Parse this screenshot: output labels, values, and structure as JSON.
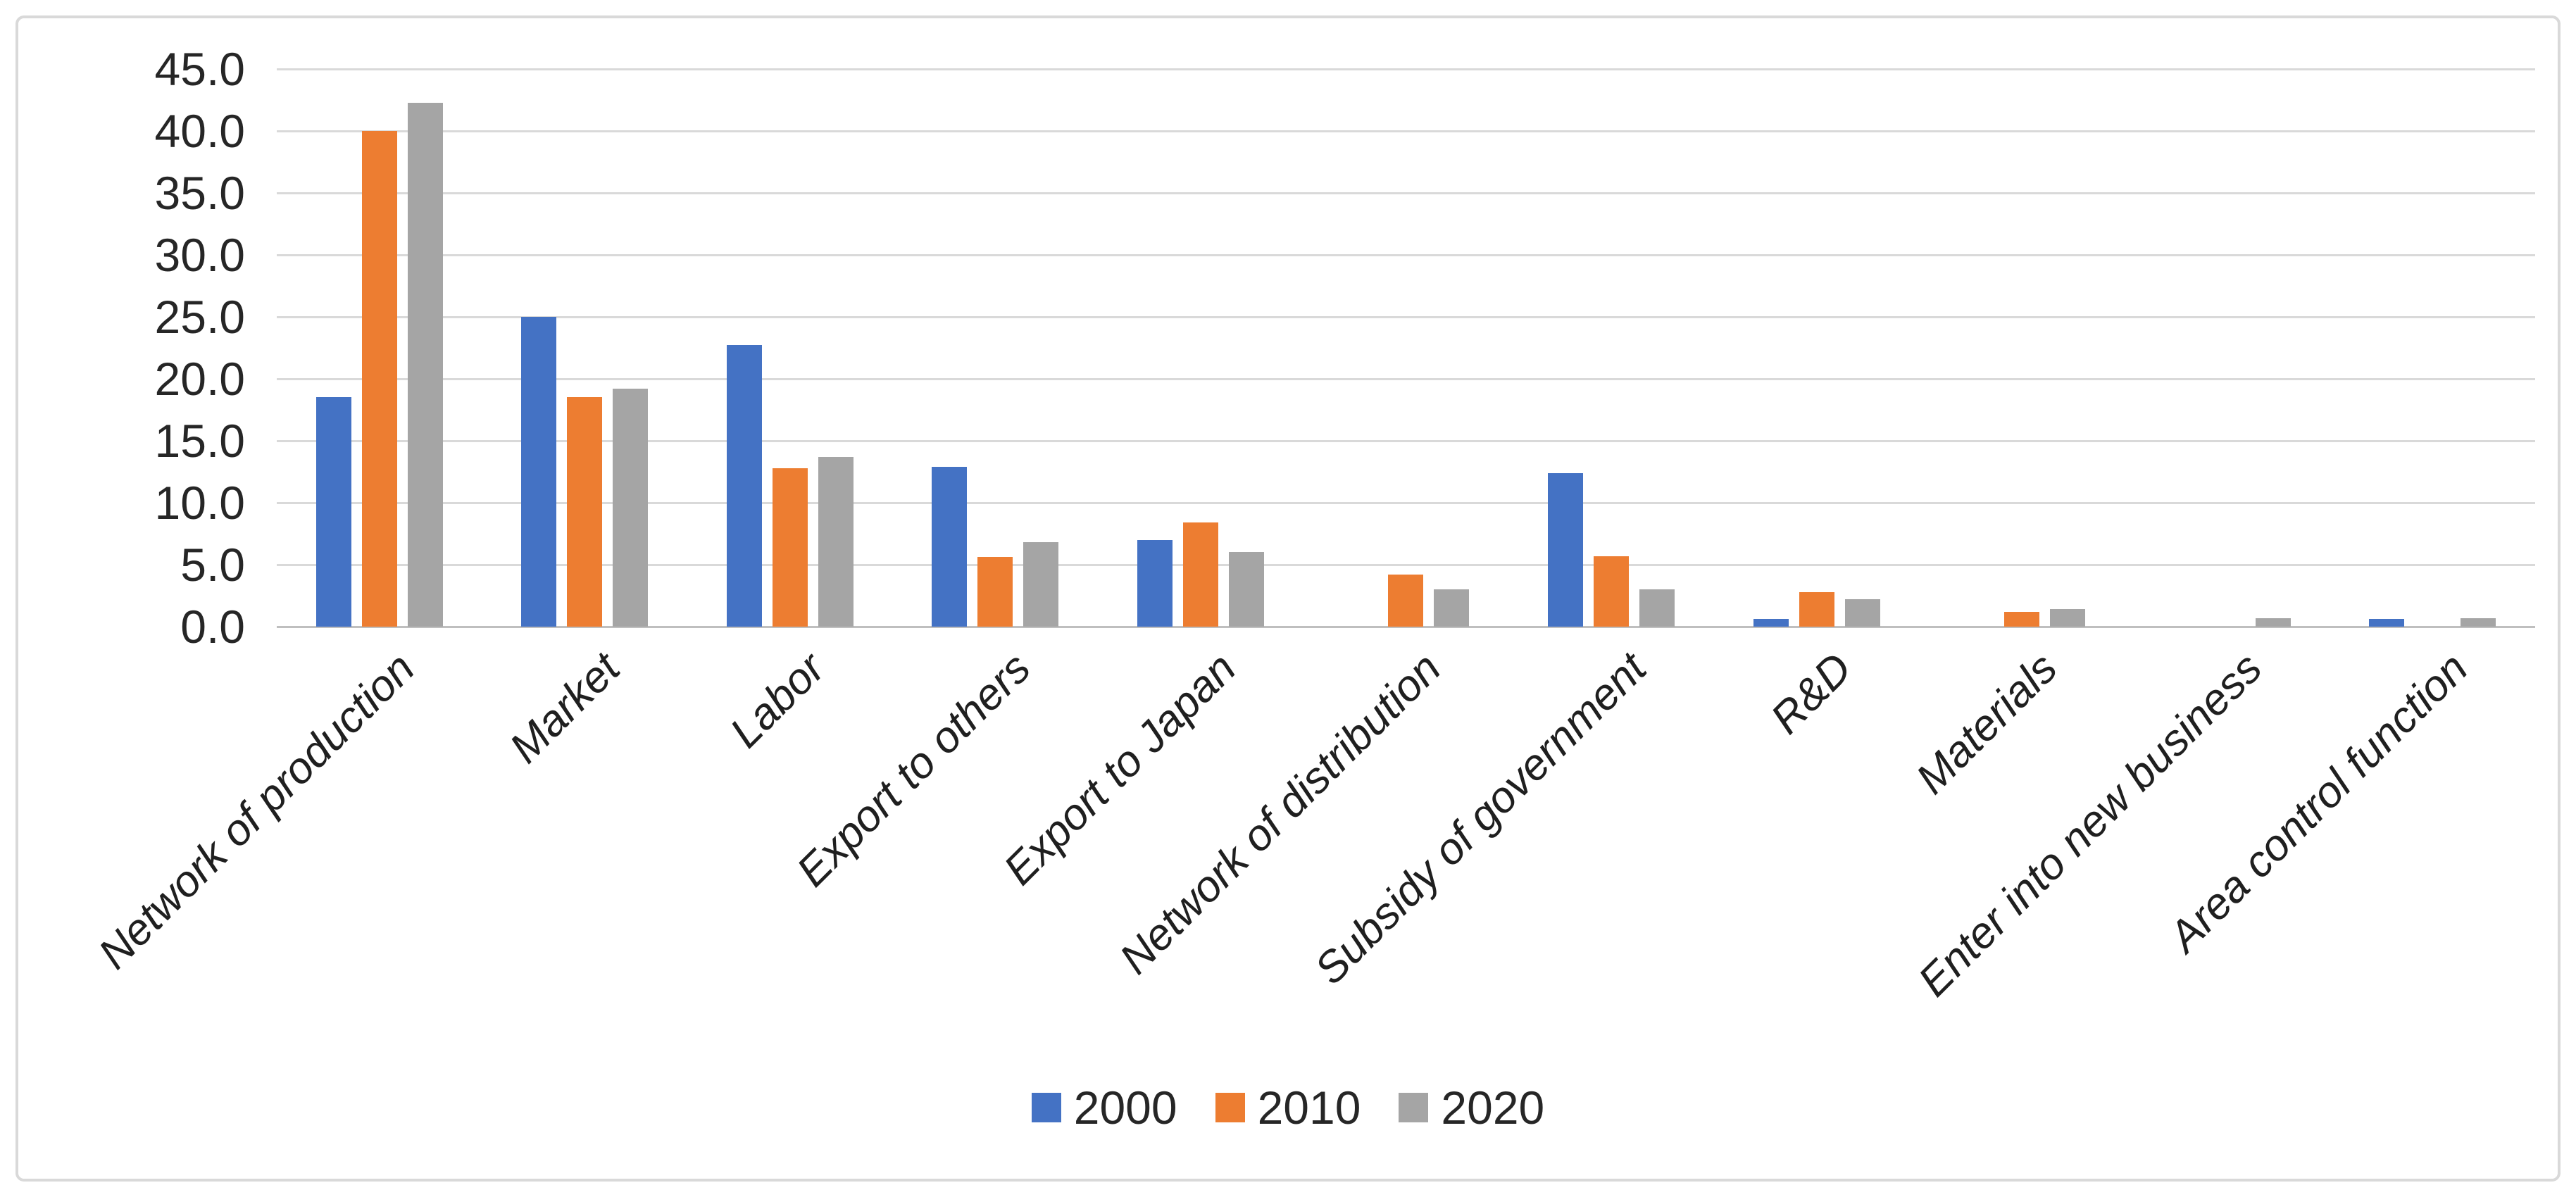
{
  "chart_data": {
    "type": "bar",
    "title": "",
    "xlabel": "",
    "ylabel": "",
    "categories": [
      "Network of production",
      "Market",
      "Labor",
      "Export to others",
      "Export to Japan",
      "Network of distribution",
      "Subsidy of government",
      "R&D",
      "Materials",
      "Enter into new business",
      "Area control function"
    ],
    "series": [
      {
        "name": "2000",
        "color": "#4472C4",
        "values": [
          18.5,
          25.0,
          22.7,
          12.9,
          7.0,
          0,
          12.4,
          0.6,
          0,
          0,
          0.6
        ]
      },
      {
        "name": "2010",
        "color": "#ED7D31",
        "values": [
          40.0,
          18.5,
          12.8,
          5.6,
          8.4,
          4.2,
          5.7,
          2.8,
          1.2,
          0,
          0
        ]
      },
      {
        "name": "2020",
        "color": "#A5A5A5",
        "values": [
          42.3,
          19.2,
          13.7,
          6.8,
          6.0,
          3.0,
          3.0,
          2.2,
          1.4,
          0.7,
          0.7
        ]
      }
    ],
    "ylim": [
      0,
      45
    ],
    "y_tick_step": 5,
    "y_tick_labels": [
      "0.0",
      "5.0",
      "10.0",
      "15.0",
      "20.0",
      "25.0",
      "30.0",
      "35.0",
      "40.0",
      "45.0"
    ],
    "grid": true,
    "legend_position": "bottom",
    "legend_labels": [
      "2000",
      "2010",
      "2020"
    ]
  },
  "styles": {
    "series_colors": [
      "#4472C4",
      "#ED7D31",
      "#A5A5A5"
    ],
    "gridline_color": "#d9d9d9",
    "axis_line_color": "#bfbfbf",
    "frame_border_color": "#d9d9d9",
    "text_color": "#262626",
    "background_color": "#ffffff"
  }
}
